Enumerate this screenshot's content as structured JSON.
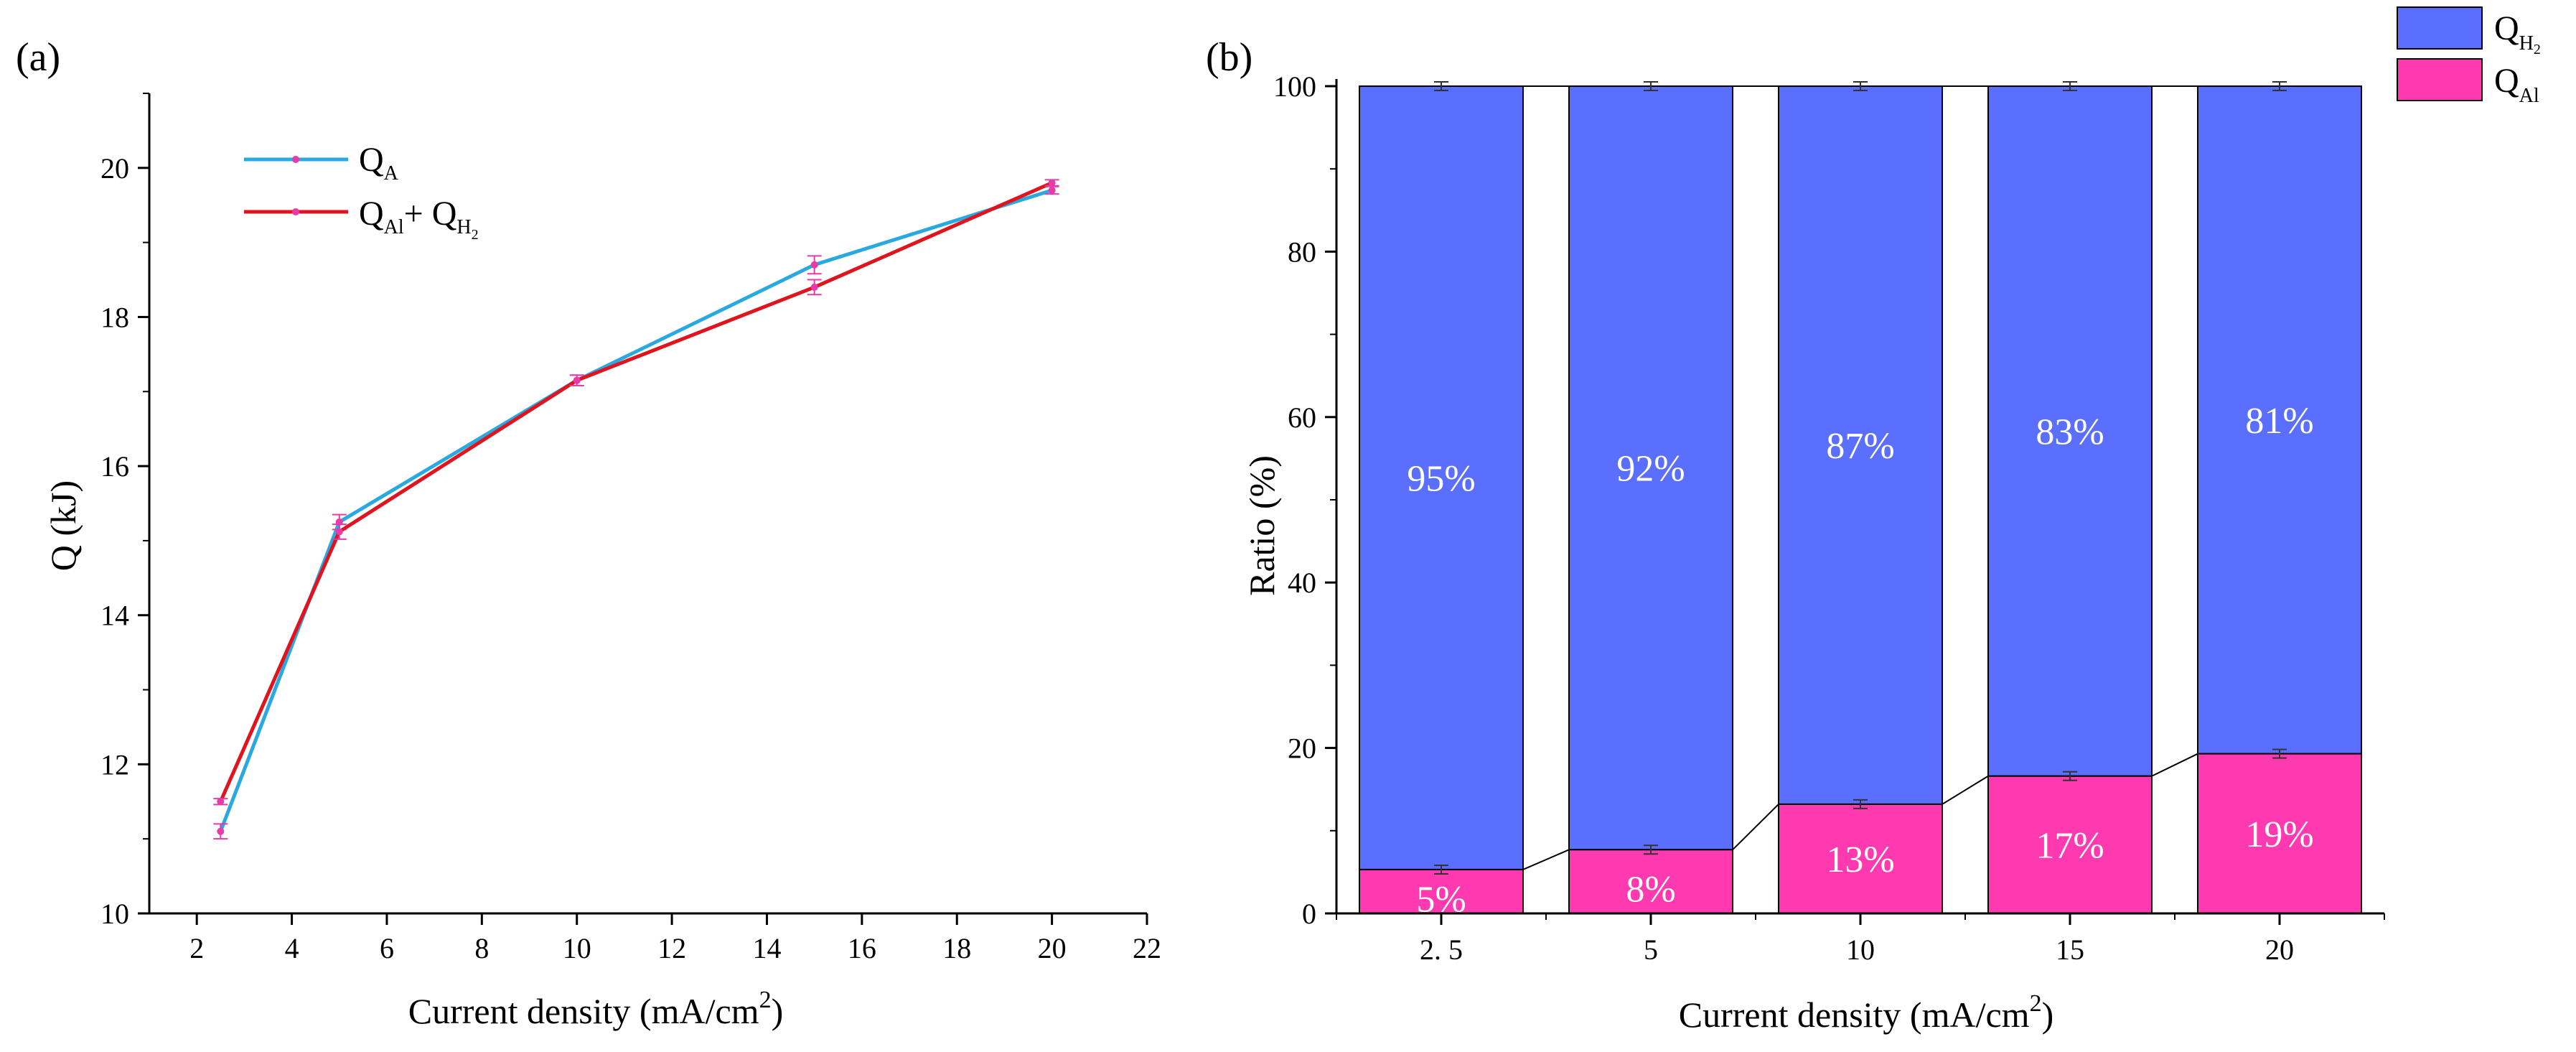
{
  "colors": {
    "qa": "#29a9e0",
    "sum": "#e0141e",
    "marker": "#e83aa8",
    "qh2": "#5b6fff",
    "qal": "#ff3ab0"
  },
  "chart_data": [
    {
      "panel": "(a)",
      "type": "line",
      "xlabel": "Current density (mA/cm",
      "xlabel_sup": "2",
      "xlabel_end": ")",
      "ylabel": "Q (kJ)",
      "xlim": [
        1,
        22
      ],
      "ylim": [
        10,
        21
      ],
      "xticks": [
        "2",
        "4",
        "6",
        "8",
        "10",
        "12",
        "14",
        "16",
        "18",
        "20",
        "22"
      ],
      "yticks": [
        "10",
        "12",
        "14",
        "16",
        "18",
        "20"
      ],
      "legend": {
        "qa": {
          "main": "Q",
          "sub": "A"
        },
        "sum": {
          "main1": "Q",
          "sub1": "Al",
          "plus": "+ Q",
          "sub2": "H",
          "sub2b": "2"
        }
      },
      "series": [
        {
          "name": "QA",
          "x": [
            2.5,
            5,
            10,
            15,
            20
          ],
          "values": [
            11.1,
            15.25,
            17.15,
            18.7,
            19.7
          ],
          "err": [
            0.1,
            0.1,
            0.07,
            0.12,
            0.05
          ]
        },
        {
          "name": "QAl + QH2",
          "x": [
            2.5,
            5,
            10,
            15,
            20
          ],
          "values": [
            11.5,
            15.12,
            17.15,
            18.4,
            19.8
          ],
          "err": [
            0.04,
            0.1,
            0.07,
            0.1,
            0.04
          ]
        }
      ]
    },
    {
      "panel": "(b)",
      "type": "bar",
      "stacked": true,
      "xlabel": "Current density (mA/cm",
      "xlabel_sup": "2",
      "xlabel_end": ")",
      "ylabel": "Ratio (%)",
      "ylim": [
        0,
        100
      ],
      "yticks": [
        "0",
        "20",
        "40",
        "60",
        "80",
        "100"
      ],
      "categories": [
        "2. 5",
        "5",
        "10",
        "15",
        "20"
      ],
      "legend": {
        "qh2": {
          "main": "Q",
          "sub": "H",
          "subb": "2"
        },
        "qal": {
          "main": "Q",
          "sub": "Al"
        }
      },
      "series": [
        {
          "name": "QAl",
          "values": [
            5.3,
            7.7,
            13.2,
            16.6,
            19.3
          ],
          "labels": [
            "5%",
            "8%",
            "13%",
            "17%",
            "19%"
          ]
        },
        {
          "name": "QH2",
          "values": [
            94.7,
            92.3,
            86.8,
            83.4,
            80.7
          ],
          "labels": [
            "95%",
            "92%",
            "87%",
            "83%",
            "81%"
          ]
        }
      ]
    }
  ]
}
